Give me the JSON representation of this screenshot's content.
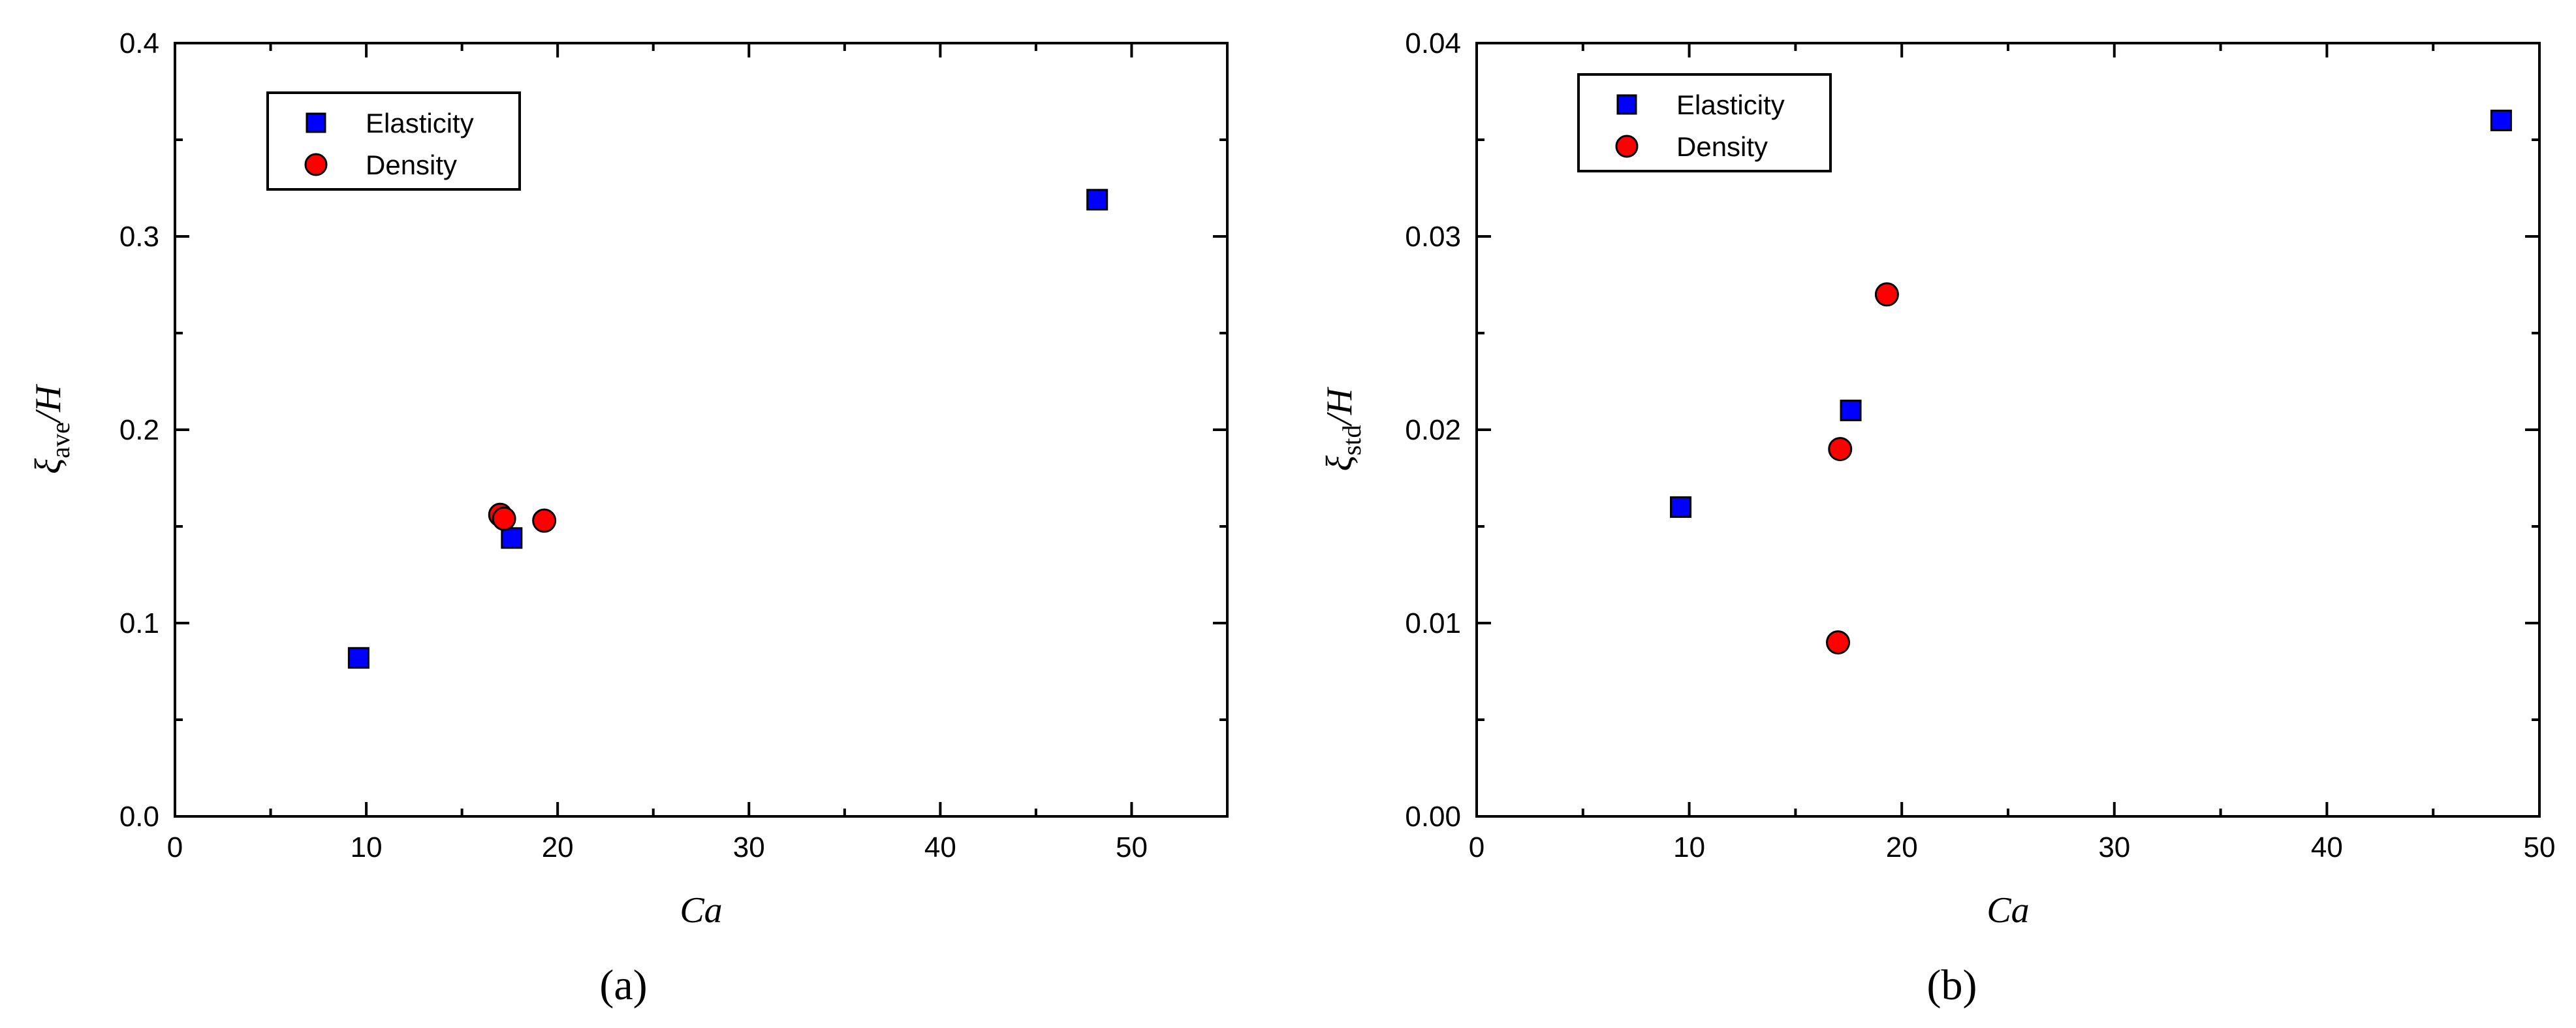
{
  "colors": {
    "elasticity": "#0000ff",
    "density": "#ff0000",
    "axis": "#000000"
  },
  "chart_data": [
    {
      "type": "scatter",
      "panel_label": "(a)",
      "xlabel": "Ca",
      "ylabel_symbol": "ξ",
      "ylabel_subscript": "ave",
      "ylabel_suffix": "/H",
      "xlim": [
        0,
        55
      ],
      "ylim": [
        0,
        0.4
      ],
      "xticks": [
        0,
        10,
        20,
        30,
        40,
        50
      ],
      "xtick_labels": [
        "0",
        "10",
        "20",
        "30",
        "40",
        "50"
      ],
      "yticks": [
        0,
        0.1,
        0.2,
        0.3,
        0.4
      ],
      "ytick_labels": [
        "0.0",
        "0.1",
        "0.2",
        "0.3",
        "0.4"
      ],
      "legend_position": "top-left",
      "grid": false,
      "series": [
        {
          "name": "Elasticity",
          "marker": "square",
          "x": [
            9.6,
            17.6,
            48.2
          ],
          "y": [
            0.082,
            0.144,
            0.319
          ]
        },
        {
          "name": "Density",
          "marker": "circle",
          "x": [
            17.0,
            17.2,
            19.3
          ],
          "y": [
            0.156,
            0.154,
            0.153
          ]
        }
      ]
    },
    {
      "type": "scatter",
      "panel_label": "(b)",
      "xlabel": "Ca",
      "ylabel_symbol": "ξ",
      "ylabel_subscript": "std",
      "ylabel_suffix": "/H",
      "xlim": [
        0,
        50
      ],
      "ylim": [
        0,
        0.04
      ],
      "xticks": [
        0,
        10,
        20,
        30,
        40,
        50
      ],
      "xtick_labels": [
        "0",
        "10",
        "20",
        "30",
        "40",
        "50"
      ],
      "yticks": [
        0,
        0.01,
        0.02,
        0.03,
        0.04
      ],
      "ytick_labels": [
        "0.00",
        "0.01",
        "0.02",
        "0.03",
        "0.04"
      ],
      "legend_position": "top-left",
      "grid": false,
      "series": [
        {
          "name": "Elasticity",
          "marker": "square",
          "x": [
            9.6,
            17.6,
            48.2
          ],
          "y": [
            0.016,
            0.021,
            0.036
          ]
        },
        {
          "name": "Density",
          "marker": "circle",
          "x": [
            17.0,
            17.1,
            19.3
          ],
          "y": [
            0.009,
            0.019,
            0.027
          ]
        }
      ]
    }
  ]
}
